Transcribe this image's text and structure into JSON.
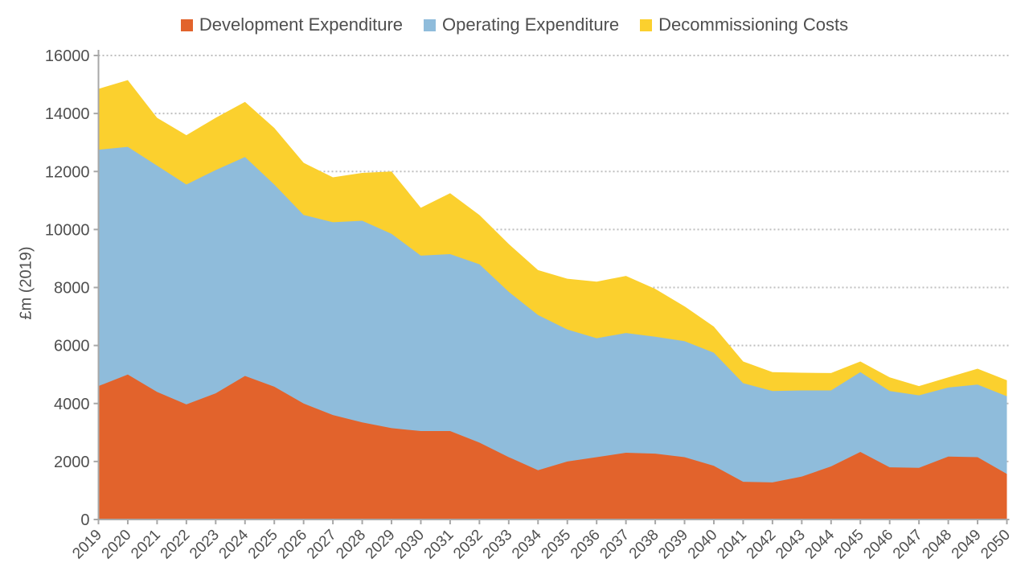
{
  "chart_data": {
    "type": "area",
    "stacked": true,
    "title": "",
    "ylabel": "£m (2019)",
    "xlabel": "",
    "legend_position": "top",
    "grid": "horizontal-dotted",
    "ylim": [
      0,
      16000
    ],
    "ytick_step": 2000,
    "yticks": [
      0,
      2000,
      4000,
      6000,
      8000,
      10000,
      12000,
      14000,
      16000
    ],
    "x": [
      "2019",
      "2020",
      "2021",
      "2022",
      "2023",
      "2024",
      "2025",
      "2026",
      "2027",
      "2028",
      "2029",
      "2030",
      "2031",
      "2032",
      "2033",
      "2034",
      "2035",
      "2036",
      "2037",
      "2038",
      "2039",
      "2040",
      "2041",
      "2042",
      "2043",
      "2044",
      "2045",
      "2046",
      "2047",
      "2048",
      "2049",
      "2050"
    ],
    "series": [
      {
        "name": "Development Expenditure",
        "color": "#E2632C",
        "values": [
          4600,
          5000,
          4400,
          3970,
          4350,
          4950,
          4580,
          4000,
          3600,
          3350,
          3150,
          3050,
          3050,
          2650,
          2150,
          1700,
          2000,
          2150,
          2300,
          2270,
          2150,
          1850,
          1300,
          1280,
          1480,
          1830,
          2330,
          1800,
          1780,
          2170,
          2150,
          1570
        ]
      },
      {
        "name": "Operating Expenditure",
        "color": "#8FBCDB",
        "values": [
          8150,
          7850,
          7800,
          7580,
          7700,
          7550,
          6970,
          6500,
          6650,
          6950,
          6700,
          6050,
          6100,
          6150,
          5700,
          5350,
          4550,
          4100,
          4130,
          4030,
          4000,
          3900,
          3400,
          3150,
          2970,
          2620,
          2750,
          2630,
          2500,
          2380,
          2500,
          2680
        ]
      },
      {
        "name": "Decommissioning Costs",
        "color": "#FBD02E",
        "values": [
          2100,
          2300,
          1650,
          1700,
          1800,
          1900,
          1950,
          1800,
          1550,
          1650,
          2150,
          1650,
          2100,
          1700,
          1650,
          1550,
          1750,
          1950,
          1970,
          1650,
          1200,
          900,
          750,
          650,
          610,
          600,
          370,
          470,
          320,
          350,
          550,
          550
        ]
      }
    ],
    "style": {
      "axis_color": "#A8A8A8",
      "gridline_color": "#BFBFBF",
      "text_color": "#4f4f4f",
      "background": "#ffffff"
    }
  }
}
